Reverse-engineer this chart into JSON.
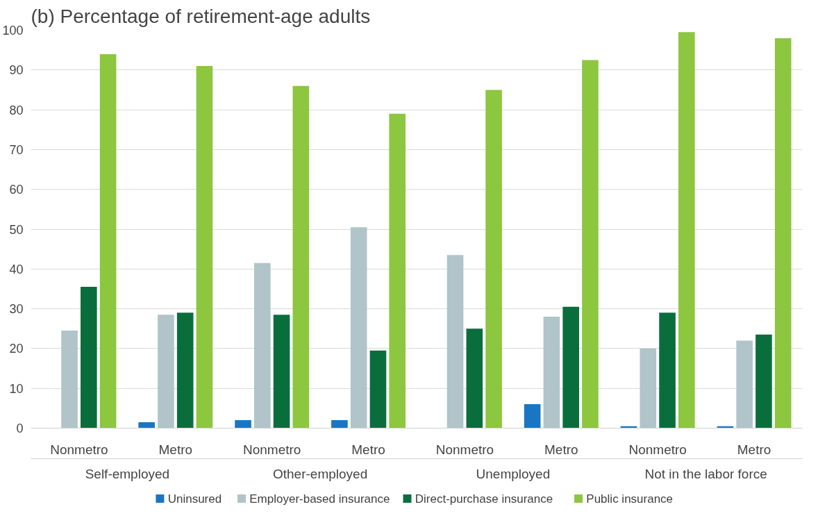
{
  "chart_data": {
    "type": "bar",
    "title": "(b) Percentage of retirement-age adults",
    "categories": [
      "Nonmetro",
      "Metro",
      "Nonmetro",
      "Metro",
      "Nonmetro",
      "Metro",
      "Nonmetro",
      "Metro"
    ],
    "annotations": [
      "Self-employed",
      "Other-employed",
      "Unemployed",
      "Not in the labor force"
    ],
    "series": [
      {
        "name": "Uninsured",
        "color": "#1a76c2",
        "values": [
          0,
          1.5,
          2,
          2,
          0,
          6,
          0.5,
          0.5
        ]
      },
      {
        "name": "Employer-based insurance",
        "color": "#b0c4c9",
        "values": [
          24.5,
          28.5,
          41.5,
          50.5,
          43.5,
          28,
          20,
          22
        ]
      },
      {
        "name": "Direct-purchase insurance",
        "color": "#0a6e3c",
        "values": [
          35.5,
          29,
          28.5,
          19.5,
          25,
          30.5,
          29,
          23.5
        ]
      },
      {
        "name": "Public insurance",
        "color": "#8dc63f",
        "values": [
          94,
          91,
          86,
          79,
          85,
          92.5,
          99.5,
          98
        ]
      }
    ],
    "ylim": [
      0,
      100
    ],
    "yticks": [
      0,
      10,
      20,
      30,
      40,
      50,
      60,
      70,
      80,
      90,
      100
    ],
    "grid": "y",
    "legend": "bottom"
  }
}
